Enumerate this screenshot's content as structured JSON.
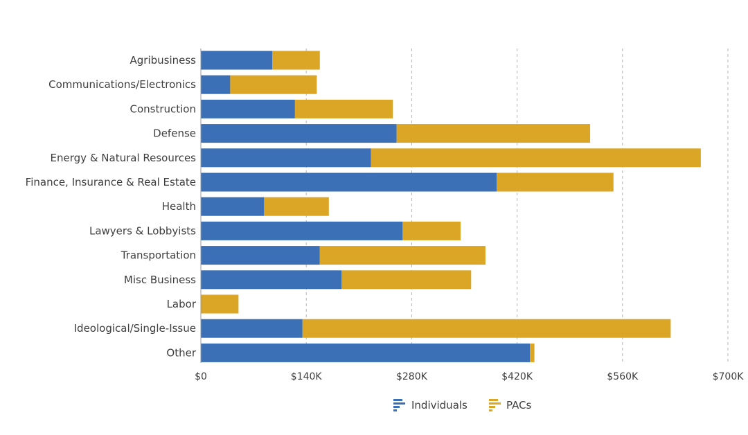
{
  "chart_data": {
    "type": "bar",
    "orientation": "horizontal",
    "stacked": true,
    "categories": [
      "Agribusiness",
      "Communications/Electronics",
      "Construction",
      "Defense",
      "Energy & Natural Resources",
      "Finance, Insurance & Real Estate",
      "Health",
      "Lawyers & Lobbyists",
      "Transportation",
      "Misc Business",
      "Labor",
      "Ideological/Single-Issue",
      "Other"
    ],
    "series": [
      {
        "name": "Individuals",
        "color": "#3b6fb6",
        "values": [
          95000,
          39000,
          125000,
          260000,
          226000,
          393000,
          84000,
          268000,
          158000,
          187000,
          0,
          135000,
          437000
        ]
      },
      {
        "name": "PACs",
        "color": "#dba625",
        "values": [
          63000,
          115000,
          130000,
          257000,
          438000,
          155000,
          86000,
          77000,
          220000,
          172000,
          50000,
          489000,
          6000
        ]
      }
    ],
    "xlim": [
      0,
      700000
    ],
    "xticks": [
      0,
      140000,
      280000,
      420000,
      560000,
      700000
    ],
    "xtick_labels": [
      "$0",
      "$140K",
      "$280K",
      "$420K",
      "$560K",
      "$700K"
    ],
    "grid": "vertical-dashed",
    "legend_position": "bottom-center",
    "title": "",
    "xlabel": "",
    "ylabel": ""
  }
}
